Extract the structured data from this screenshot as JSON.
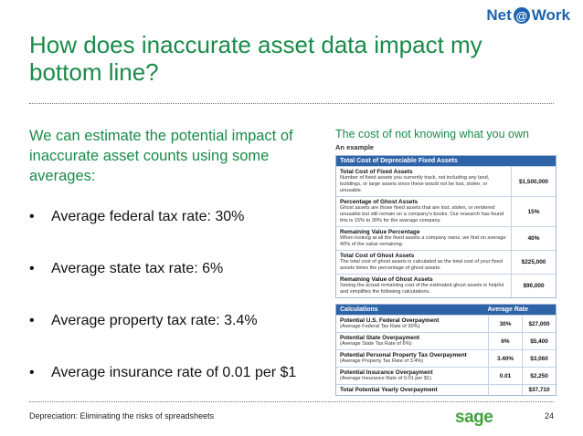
{
  "logo": {
    "left": "Net",
    "at": "@",
    "right": "Work"
  },
  "title": "How does inaccurate asset data impact my bottom line?",
  "intro": "We can estimate the potential impact of inaccurate asset counts using some averages:",
  "bullets": [
    "Average federal tax rate: 30%",
    "Average state tax rate: 6%",
    "Average property tax rate: 3.4%",
    "Average insurance rate of 0.01 per $1"
  ],
  "panel": {
    "title": "The cost of not knowing what you own",
    "subtitle": "An example",
    "table1_header": "Total Cost of Depreciable Fixed Assets",
    "table1": [
      {
        "label": "Total Cost of Fixed Assets",
        "desc": "Number of fixed assets you currently track, not including any land, buildings, or large assets since these would not be lost, stolen, or unusable.",
        "value": "$1,500,000"
      },
      {
        "label": "Percentage of Ghost Assets",
        "desc": "Ghost assets are those fixed assets that are lost, stolen, or rendered unusable but still remain on a company's books. Our research has found this is 15% to 30% for the average company.",
        "value": "15%"
      },
      {
        "label": "Remaining Value Percentage",
        "desc": "When looking at all the fixed assets a company owns, we find on average 40% of the value remaining.",
        "value": "40%"
      },
      {
        "label": "Total Cost of Ghost Assets",
        "desc": "The total cost of ghost assets is calculated as the total cost of your fixed assets times the percentage of ghost assets.",
        "value": "$225,000"
      },
      {
        "label": "Remaining Value of Ghost Assets",
        "desc": "Seeing the actual remaining cost of the estimated ghost assets is helpful and simplifies the following calculations.",
        "value": "$90,000"
      }
    ],
    "table2_header": "Calculations",
    "table2_header_rate": "Average Rate",
    "table2": [
      {
        "label": "Potential U.S. Federal Overpayment",
        "desc": "(Average Federal Tax Rate of 30%)",
        "rate": "30%",
        "value": "$27,000"
      },
      {
        "label": "Potential State Overpayment",
        "desc": "(Average State Tax Rate of 6%)",
        "rate": "6%",
        "value": "$5,400"
      },
      {
        "label": "Potential Personal Property Tax Overpayment",
        "desc": "(Average Property Tax Rate of 3.4%)",
        "rate": "3.40%",
        "value": "$3,060"
      },
      {
        "label": "Potential Insurance Overpayment",
        "desc": "(Average Insurance Rate of 0.01 per $1)",
        "rate": "0.01",
        "value": "$2,250"
      },
      {
        "label": "Total Potential Yearly Overpayment",
        "desc": "",
        "rate": "",
        "value": "$37,710"
      }
    ]
  },
  "footer": {
    "text": "Depreciation: Eliminating the risks of spreadsheets",
    "brand": "sage",
    "page": "24"
  }
}
